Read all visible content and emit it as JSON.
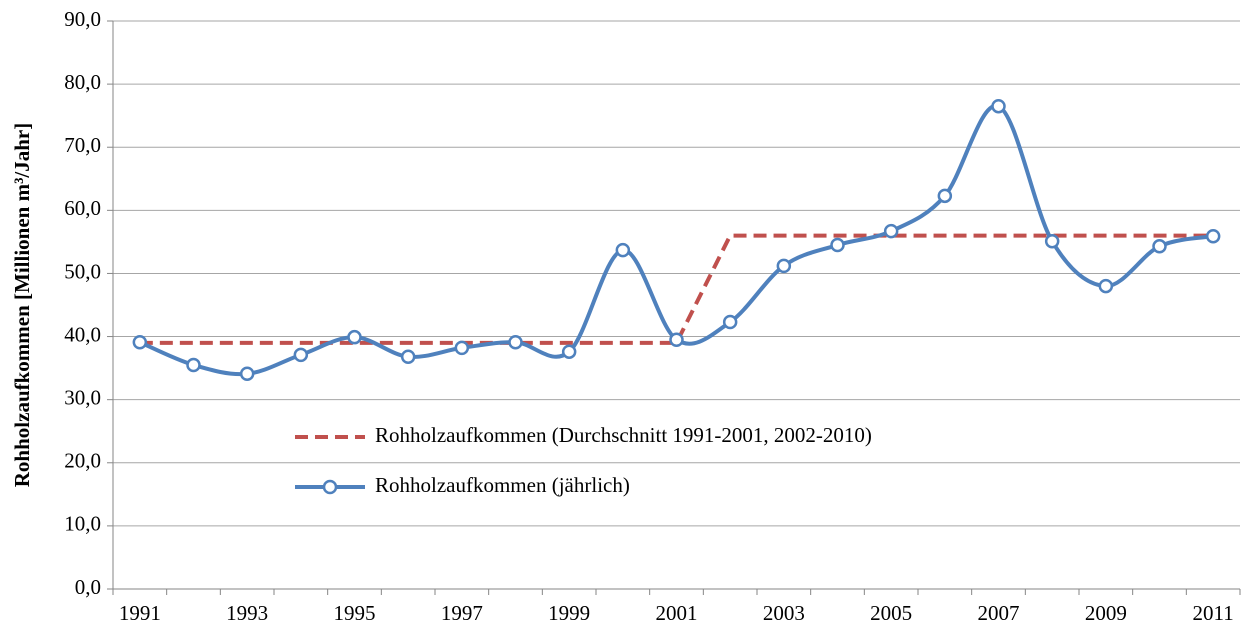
{
  "chart_data": {
    "type": "line",
    "y_label": "Rohholzaufkommen [Millionen m³/Jahr]",
    "categories": [
      "1991",
      null,
      "1993",
      null,
      "1995",
      null,
      "1997",
      null,
      "1999",
      null,
      "2001",
      null,
      "2003",
      null,
      "2005",
      null,
      "2007",
      null,
      "2009",
      null,
      "2011"
    ],
    "series": [
      {
        "name": "Rohholzaufkommen (Durchschnitt 1991-2001, 2002-2010)",
        "color": "#c0504d",
        "dashed": true,
        "smooth": false,
        "markers": false,
        "values": [
          39.0,
          39.0,
          39.0,
          39.0,
          39.0,
          39.0,
          39.0,
          39.0,
          39.0,
          39.0,
          39.0,
          56.0,
          56.0,
          56.0,
          56.0,
          56.0,
          56.0,
          56.0,
          56.0,
          56.0,
          56.0
        ]
      },
      {
        "name": "Rohholzaufkommen (jährlich)",
        "color": "#4f81bd",
        "dashed": false,
        "smooth": true,
        "markers": true,
        "values": [
          39.1,
          35.5,
          34.1,
          37.1,
          39.9,
          36.8,
          38.2,
          39.1,
          37.6,
          53.7,
          39.5,
          42.3,
          51.2,
          54.5,
          56.7,
          62.3,
          76.5,
          55.1,
          48.0,
          54.3,
          55.9
        ]
      }
    ],
    "ylim": [
      0,
      90
    ],
    "yticks": [
      {
        "value": 0,
        "label": "0,0"
      },
      {
        "value": 10,
        "label": "10,0"
      },
      {
        "value": 20,
        "label": "20,0"
      },
      {
        "value": 30,
        "label": "30,0"
      },
      {
        "value": 40,
        "label": "40,0"
      },
      {
        "value": 50,
        "label": "50,0"
      },
      {
        "value": 60,
        "label": "60,0"
      },
      {
        "value": 70,
        "label": "70,0"
      },
      {
        "value": 80,
        "label": "80,0"
      },
      {
        "value": 90,
        "label": "90,0"
      }
    ],
    "grid": true
  }
}
